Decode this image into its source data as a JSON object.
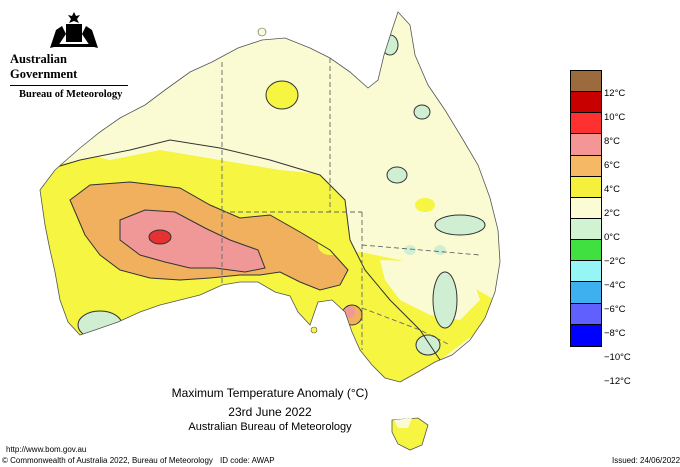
{
  "header": {
    "gov_name": "Australian Government",
    "agency": "Bureau of Meteorology",
    "logo_icon": "coat-of-arms-icon"
  },
  "map": {
    "region": "Australia",
    "colors": {
      "neg2_0": "#e0f5e0",
      "0_2": "#fbfbd3",
      "2_4": "#f5f542",
      "4_6": "#f0b05e",
      "6_8": "#f09797",
      "8_10": "#e63131",
      "10_12": "#c0000f",
      "land_neg": "#cfeed2"
    }
  },
  "legend": {
    "swatches": [
      "#9b6b3e",
      "#c80000",
      "#ff3030",
      "#f49696",
      "#f5b864",
      "#f5f03c",
      "#fbfbd4",
      "#d2f3d2",
      "#40e040",
      "#96f5f5",
      "#3eb0f0",
      "#6060ff",
      "#0000ff"
    ],
    "labels": [
      "12°C",
      "10°C",
      "8°C",
      "6°C",
      "4°C",
      "2°C",
      "0°C",
      "−2°C",
      "−4°C",
      "−6°C",
      "−8°C",
      "−10°C",
      "−12°C"
    ]
  },
  "title": {
    "line1": "Maximum Temperature Anomaly (°C)",
    "line2": "23rd June 2022",
    "line3": "Australian Bureau of Meteorology"
  },
  "footer": {
    "url": "http://www.bom.gov.au",
    "copyright": "© Commonwealth of Australia 2022, Bureau of Meteorology",
    "id_code": "ID code: AWAP",
    "issued": "Issued: 24/06/2022"
  }
}
